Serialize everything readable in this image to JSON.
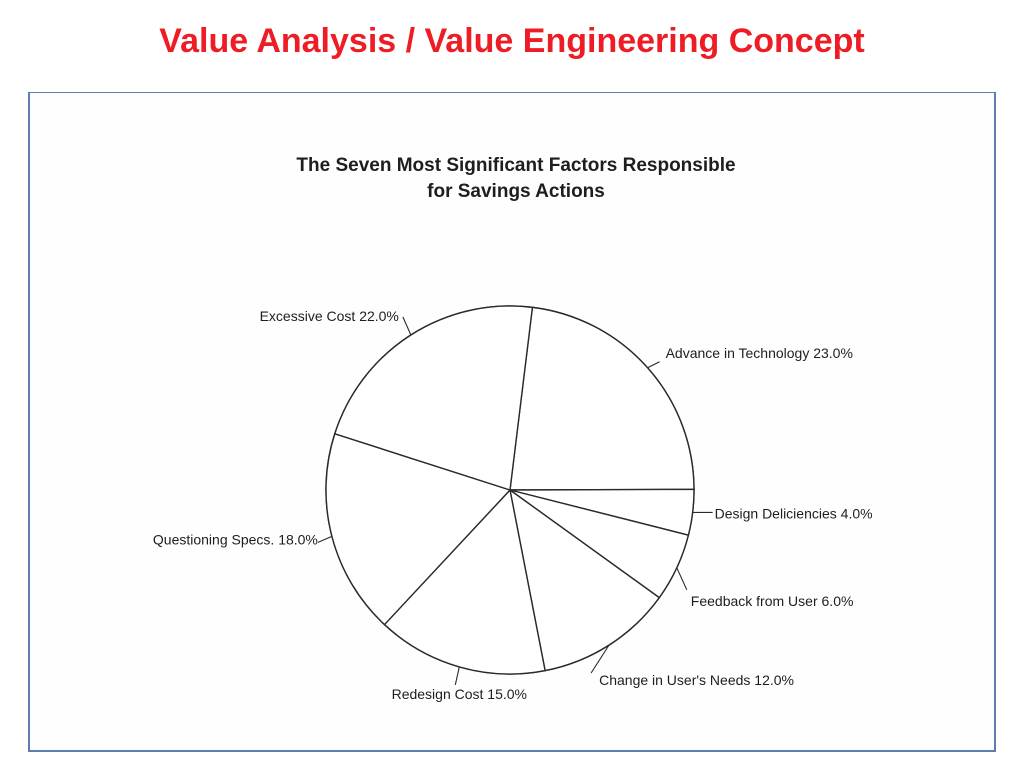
{
  "slide": {
    "title": "Value Analysis / Value Engineering Concept",
    "title_color": "#ee1c25"
  },
  "frame_color": "#5b7fb0",
  "chart_data": {
    "type": "pie",
    "title_lines": [
      "The Seven Most Significant Factors  Responsible",
      "for Savings Actions"
    ],
    "slices": [
      {
        "label": "Advance in Technology",
        "value": 23.0,
        "value_label": "23.0%"
      },
      {
        "label": "Design Deliciencies",
        "value": 4.0,
        "value_label": "4.0%"
      },
      {
        "label": "Feedback from User",
        "value": 6.0,
        "value_label": "6.0%"
      },
      {
        "label": "Change in User's Needs",
        "value": 12.0,
        "value_label": "12.0%"
      },
      {
        "label": "Redesign Cost",
        "value": 15.0,
        "value_label": "15.0%"
      },
      {
        "label": "Questioning Specs.",
        "value": 18.0,
        "value_label": "18.0%"
      },
      {
        "label": "Excessive Cost",
        "value": 22.0,
        "value_label": "22.0%"
      }
    ],
    "start_angle_deg": -83,
    "direction": "clockwise",
    "fill": "#ffffff",
    "line_color": "#2a2a2a",
    "legend": "none (labels beside slices)"
  }
}
